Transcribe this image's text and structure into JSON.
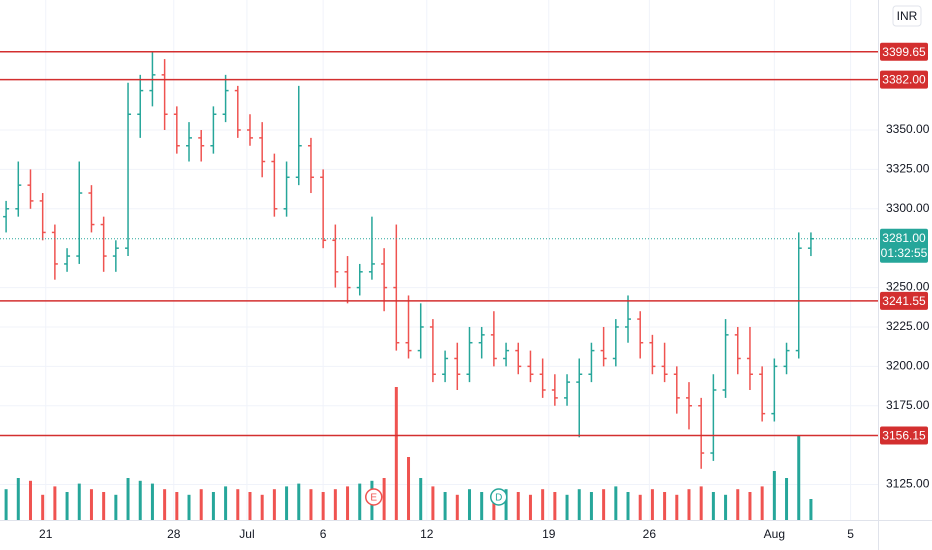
{
  "chart_data": {
    "type": "ohlc",
    "currency": "INR",
    "x": [
      1,
      3,
      5,
      7,
      9,
      11,
      13,
      15,
      17,
      19,
      21,
      23,
      25,
      27,
      29,
      31,
      33,
      35,
      37,
      39,
      41,
      43,
      45,
      47,
      49,
      51,
      53,
      55,
      57,
      59,
      61,
      63,
      65,
      67,
      69,
      71,
      73,
      75,
      77,
      79,
      81,
      83,
      85,
      87,
      89,
      91,
      93,
      95,
      97,
      99,
      101,
      103,
      105,
      107,
      109,
      111,
      113,
      115,
      117,
      119,
      121,
      123,
      125,
      127,
      129,
      131,
      133
    ],
    "open": [
      3295,
      3300,
      3315,
      3305,
      3285,
      3265,
      3270,
      3310,
      3290,
      3270,
      3275,
      3360,
      3375,
      3385,
      3360,
      3340,
      3345,
      3340,
      3360,
      3375,
      3350,
      3345,
      3330,
      3300,
      3320,
      3340,
      3320,
      3280,
      3260,
      3250,
      3260,
      3265,
      3250,
      3215,
      3210,
      3225,
      3195,
      3205,
      3195,
      3215,
      3220,
      3205,
      3210,
      3200,
      3195,
      3185,
      3180,
      3190,
      3195,
      3210,
      3205,
      3225,
      3230,
      3215,
      3200,
      3195,
      3180,
      3175,
      3145,
      3185,
      3220,
      3205,
      3195,
      3170,
      3200,
      3210,
      3275
    ],
    "high": [
      3305,
      3330,
      3325,
      3310,
      3290,
      3275,
      3330,
      3315,
      3295,
      3280,
      3380,
      3385,
      3400,
      3395,
      3365,
      3355,
      3350,
      3365,
      3385,
      3378,
      3360,
      3355,
      3335,
      3330,
      3378,
      3345,
      3325,
      3290,
      3270,
      3265,
      3295,
      3275,
      3290,
      3245,
      3240,
      3230,
      3210,
      3215,
      3225,
      3225,
      3235,
      3215,
      3215,
      3210,
      3205,
      3195,
      3195,
      3205,
      3215,
      3225,
      3230,
      3245,
      3235,
      3220,
      3215,
      3200,
      3190,
      3180,
      3195,
      3230,
      3225,
      3225,
      3200,
      3205,
      3215,
      3285,
      3285
    ],
    "low": [
      3285,
      3295,
      3300,
      3280,
      3255,
      3260,
      3265,
      3285,
      3260,
      3260,
      3270,
      3345,
      3365,
      3350,
      3335,
      3330,
      3330,
      3335,
      3355,
      3345,
      3340,
      3320,
      3295,
      3295,
      3315,
      3310,
      3275,
      3250,
      3240,
      3245,
      3255,
      3235,
      3210,
      3205,
      3205,
      3190,
      3190,
      3185,
      3190,
      3205,
      3200,
      3200,
      3195,
      3190,
      3180,
      3175,
      3175,
      3155,
      3190,
      3200,
      3200,
      3215,
      3205,
      3195,
      3190,
      3170,
      3160,
      3135,
      3140,
      3180,
      3195,
      3185,
      3165,
      3165,
      3195,
      3205,
      3270
    ],
    "close": [
      3300,
      3315,
      3305,
      3285,
      3265,
      3270,
      3310,
      3290,
      3270,
      3275,
      3360,
      3375,
      3385,
      3360,
      3340,
      3345,
      3340,
      3360,
      3375,
      3350,
      3345,
      3330,
      3300,
      3320,
      3340,
      3320,
      3280,
      3260,
      3250,
      3260,
      3265,
      3250,
      3215,
      3210,
      3225,
      3195,
      3205,
      3195,
      3215,
      3220,
      3205,
      3210,
      3200,
      3195,
      3185,
      3180,
      3190,
      3195,
      3210,
      3205,
      3225,
      3230,
      3215,
      3200,
      3195,
      3180,
      3175,
      3145,
      3185,
      3220,
      3205,
      3195,
      3170,
      3200,
      3210,
      3275,
      3281
    ],
    "volume": [
      22,
      30,
      28,
      18,
      24,
      20,
      26,
      22,
      20,
      18,
      30,
      28,
      26,
      22,
      20,
      18,
      22,
      20,
      24,
      22,
      20,
      18,
      22,
      24,
      26,
      22,
      20,
      22,
      24,
      26,
      28,
      30,
      95,
      45,
      30,
      24,
      20,
      18,
      22,
      20,
      18,
      22,
      20,
      18,
      22,
      20,
      18,
      22,
      20,
      22,
      24,
      20,
      18,
      22,
      20,
      18,
      22,
      24,
      20,
      18,
      22,
      20,
      24,
      35,
      30,
      60,
      15
    ],
    "ylim": [
      3102.5,
      3432.5
    ],
    "vlim": [
      0,
      100
    ],
    "xlim": [
      0,
      144
    ],
    "yticks": [
      {
        "value": 3350,
        "label": "3350.00"
      },
      {
        "value": 3325,
        "label": "3325.00"
      },
      {
        "value": 3300,
        "label": "3300.00"
      },
      {
        "value": 3250,
        "label": "3250.00"
      },
      {
        "value": 3225,
        "label": "3225.00"
      },
      {
        "value": 3200,
        "label": "3200.00"
      },
      {
        "value": 3175,
        "label": "3175.00"
      },
      {
        "value": 3125,
        "label": "3125.00"
      }
    ],
    "xticks": [
      {
        "value": 7.5,
        "label": "21"
      },
      {
        "value": 28.5,
        "label": "28"
      },
      {
        "value": 40.5,
        "label": "Jul"
      },
      {
        "value": 53,
        "label": "6"
      },
      {
        "value": 70,
        "label": "12"
      },
      {
        "value": 90,
        "label": "19"
      },
      {
        "value": 106.5,
        "label": "26"
      },
      {
        "value": 127,
        "label": "Aug"
      },
      {
        "value": 139.5,
        "label": "5"
      }
    ],
    "levels": [
      {
        "value": 3399.65,
        "label": "3399.65"
      },
      {
        "value": 3382,
        "label": "3382.00"
      },
      {
        "value": 3241.55,
        "label": "3241.55"
      },
      {
        "value": 3156.15,
        "label": "3156.15"
      }
    ],
    "last_price": {
      "value": 3281,
      "label": "3281.00"
    },
    "countdown": "01:32:55",
    "events": [
      {
        "x": 61.3,
        "label": "E",
        "color": "#ef5350"
      },
      {
        "x": 81.8,
        "label": "D",
        "color": "#26a69a"
      }
    ],
    "up_color": "#26a69a",
    "down_color": "#ef5350",
    "level_color": "#d32f2f",
    "grid": true
  }
}
